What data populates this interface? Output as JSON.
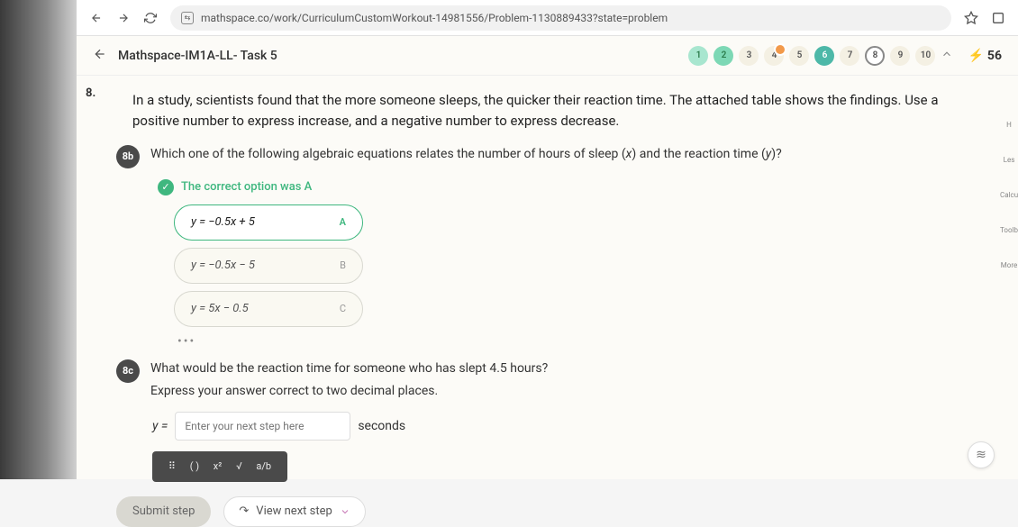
{
  "url": "mathspace.co/work/CurriculumCustomWorkout-14981556/Problem-1130889433?state=problem",
  "task_title": "Mathspace-IM1A-LL- Task 5",
  "streak_count": "56",
  "progress": {
    "items": [
      {
        "label": "1",
        "cls": "green1"
      },
      {
        "label": "2",
        "cls": "green2"
      },
      {
        "label": "3",
        "cls": ""
      },
      {
        "label": "4",
        "cls": "orange"
      },
      {
        "label": "5",
        "cls": ""
      },
      {
        "label": "6",
        "cls": "teal"
      },
      {
        "label": "7",
        "cls": ""
      },
      {
        "label": "8",
        "cls": "current"
      },
      {
        "label": "9",
        "cls": ""
      },
      {
        "label": "10",
        "cls": ""
      }
    ]
  },
  "question": {
    "number": "8.",
    "prompt": "In a study, scientists found that the more someone sleeps, the quicker their reaction time. The attached table shows the findings. Use a positive number to express increase, and a negative number to express decrease."
  },
  "sub_b": {
    "badge": "8b",
    "text_before": "Which one of the following algebraic equations relates the number of hours of sleep (",
    "xvar": "x",
    "text_mid": ") and the reaction time (",
    "yvar": "y",
    "text_after": ")?",
    "correct_msg": "The correct option was A",
    "options": [
      {
        "formula": "y = −0.5x + 5",
        "letter": "A",
        "selected": true
      },
      {
        "formula": "y = −0.5x − 5",
        "letter": "B",
        "selected": false
      },
      {
        "formula": "y = 5x − 0.5",
        "letter": "C",
        "selected": false
      }
    ]
  },
  "sub_c": {
    "badge": "8c",
    "text_before": "What would be the reaction time for someone who has slept ",
    "hours": "4.5",
    "text_after": " hours?",
    "line2": "Express your answer correct to two decimal places.",
    "yeq": "y =",
    "placeholder": "Enter your next step here",
    "unit": "seconds"
  },
  "toolbar": {
    "t1": "⠿",
    "t2": "( )",
    "t3": "x²",
    "t4": "√",
    "t5": "a/b"
  },
  "buttons": {
    "submit": "Submit step",
    "view": "View next step"
  },
  "rail": {
    "r1": "H",
    "r2": "Les",
    "r3": "Calcul",
    "r4": "Toolb",
    "r5": "More"
  },
  "hint_icon": "≋"
}
